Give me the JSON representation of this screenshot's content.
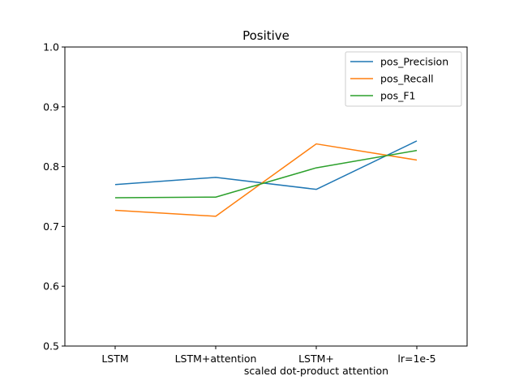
{
  "chart_data": {
    "type": "line",
    "title": "Positive",
    "categories": [
      "LSTM",
      "LSTM+attention",
      "LSTM+\nscaled dot-product attention",
      "lr=1e-5"
    ],
    "xlabel": "",
    "ylabel": "",
    "ylim": [
      0.5,
      1.0
    ],
    "yticks": [
      "0.5",
      "0.6",
      "0.7",
      "0.8",
      "0.9",
      "1.0"
    ],
    "grid": false,
    "legend_position": "top-right",
    "series": [
      {
        "name": "pos_Precision",
        "color": "#1f77b4",
        "values": [
          0.77,
          0.782,
          0.762,
          0.843
        ]
      },
      {
        "name": "pos_Recall",
        "color": "#ff7f0e",
        "values": [
          0.727,
          0.717,
          0.838,
          0.811
        ]
      },
      {
        "name": "pos_F1",
        "color": "#2ca02c",
        "values": [
          0.748,
          0.749,
          0.798,
          0.827
        ]
      }
    ]
  }
}
